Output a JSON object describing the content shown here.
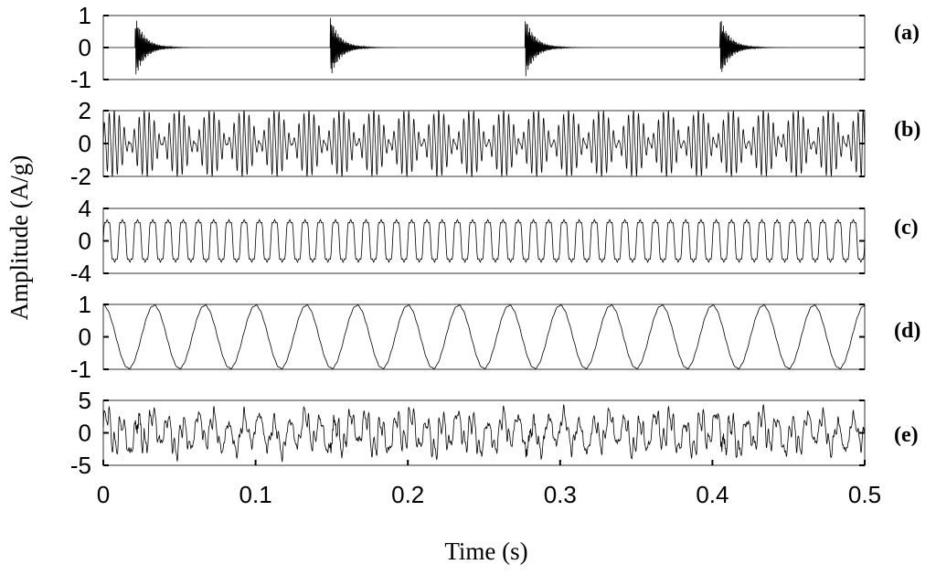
{
  "chart_data": {
    "type": "line",
    "xlabel": "Time (s)",
    "ylabel": "Amplitude (A/g)",
    "xlim": [
      0,
      0.5
    ],
    "x_ticks": [
      "0",
      "0.1",
      "0.2",
      "0.3",
      "0.4",
      "0.5"
    ],
    "grid": false,
    "panels": [
      {
        "label": "(a)",
        "ylim": [
          -1,
          1
        ],
        "y_ticks": [
          "1",
          "0",
          "-1"
        ],
        "description": "periodic decaying impulses",
        "impulse_times": [
          0.021,
          0.149,
          0.277,
          0.405
        ],
        "peak_amplitude": 1.0
      },
      {
        "label": "(b)",
        "ylim": [
          -2,
          2
        ],
        "y_ticks": [
          "2",
          "0",
          "-2"
        ],
        "description": "amplitude-modulated oscillation",
        "peak_amplitude": 2.0
      },
      {
        "label": "(c)",
        "ylim": [
          -4,
          4
        ],
        "y_ticks": [
          "4",
          "0",
          "-4"
        ],
        "description": "periodic waveform",
        "cycles": 50,
        "peak_amplitude": 3.2
      },
      {
        "label": "(d)",
        "ylim": [
          -1,
          1
        ],
        "y_ticks": [
          "1",
          "0",
          "-1"
        ],
        "description": "sinusoid",
        "cycles": 15,
        "peak_amplitude": 1.0
      },
      {
        "label": "(e)",
        "ylim": [
          -5,
          5
        ],
        "y_ticks": [
          "5",
          "0",
          "-5"
        ],
        "description": "sum of components (a)-(d)",
        "peak_amplitude": 4.5
      }
    ]
  }
}
